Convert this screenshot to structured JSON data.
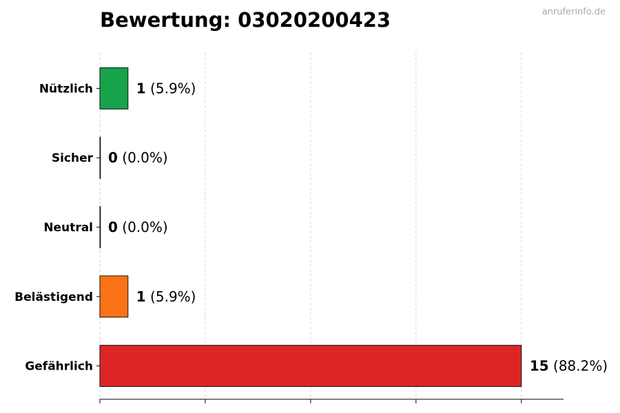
{
  "chart_data": {
    "type": "bar",
    "orientation": "horizontal",
    "title": "Bewertung: 03020200423",
    "watermark": "anruferinfo.de",
    "categories": [
      "Nützlich",
      "Sicher",
      "Neutral",
      "Belästigend",
      "Gefährlich"
    ],
    "values": [
      1,
      0,
      0,
      1,
      15
    ],
    "percent_labels": [
      "(5.9%)",
      "(0.0%)",
      "(0.0%)",
      "(5.9%)",
      "(88.2%)"
    ],
    "colors": [
      "#16a34a",
      "#22c55e",
      "#9ca3af",
      "#f97316",
      "#dc2626"
    ],
    "xlim": [
      0,
      16.5
    ],
    "xticks": [
      0,
      3.75,
      7.5,
      11.25,
      15
    ],
    "xtick_labels_shown": false,
    "grid": "x, dashed",
    "xlabel": "",
    "ylabel": ""
  }
}
